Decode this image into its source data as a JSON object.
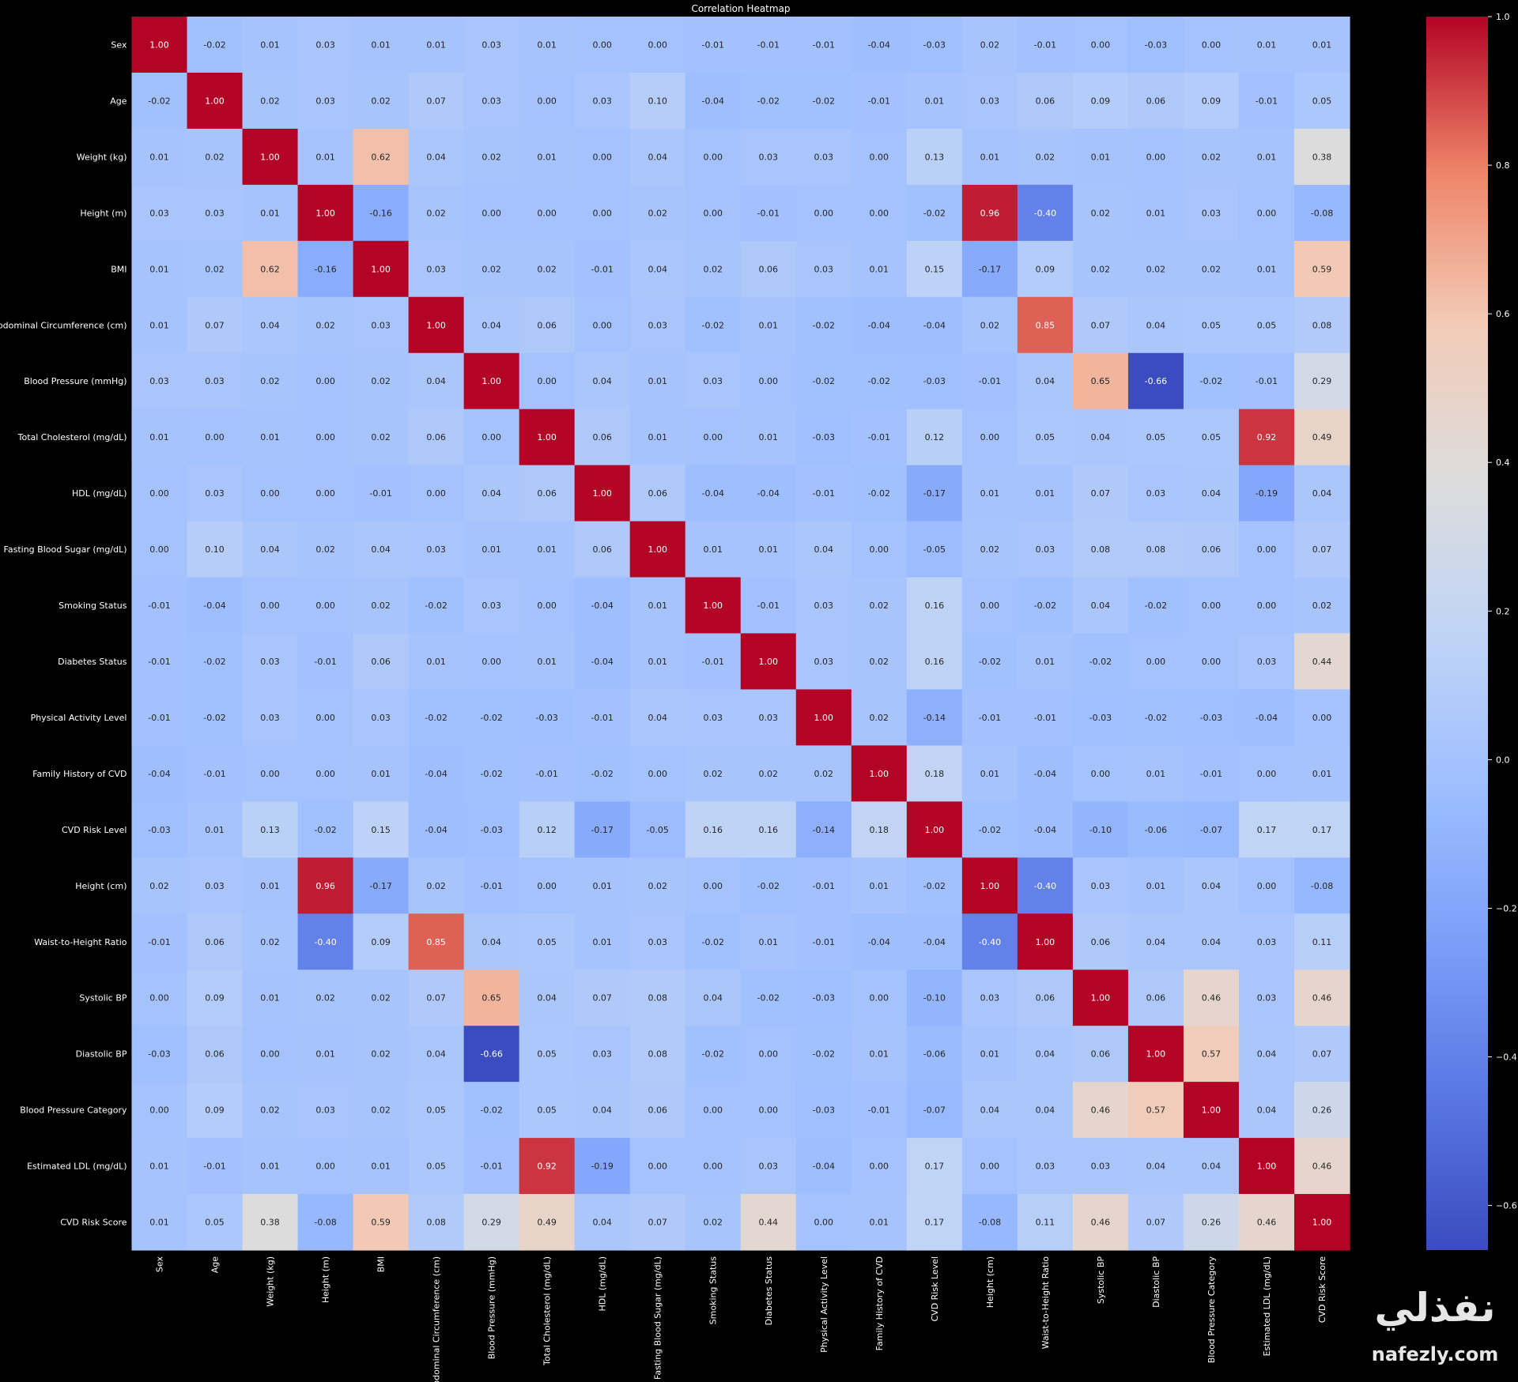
{
  "chart_data": {
    "type": "heatmap",
    "title": "Correlation Heatmap",
    "colormap": "coolwarm",
    "vmin": -0.66,
    "vmax": 1.0,
    "colorbar_ticks": [
      1.0,
      0.8,
      0.6,
      0.4,
      0.2,
      0.0,
      -0.2,
      -0.4,
      -0.6
    ],
    "colorbar_tick_labels": [
      "1.0",
      "0.8",
      "0.6",
      "0.4",
      "0.2",
      "0.0",
      "−0.2",
      "−0.4",
      "−0.6"
    ],
    "labels": [
      "Sex",
      "Age",
      "Weight (kg)",
      "Height (m)",
      "BMI",
      "Abdominal Circumference (cm)",
      "Blood Pressure (mmHg)",
      "Total Cholesterol (mg/dL)",
      "HDL (mg/dL)",
      "Fasting Blood Sugar (mg/dL)",
      "Smoking Status",
      "Diabetes Status",
      "Physical Activity Level",
      "Family History of CVD",
      "CVD Risk Level",
      "Height (cm)",
      "Waist-to-Height Ratio",
      "Systolic BP",
      "Diastolic BP",
      "Blood Pressure Category",
      "Estimated LDL (mg/dL)",
      "CVD Risk Score"
    ],
    "matrix": [
      [
        1.0,
        -0.02,
        0.01,
        0.03,
        0.01,
        0.01,
        0.03,
        0.01,
        -0.0,
        0.0,
        -0.01,
        -0.01,
        -0.01,
        -0.04,
        -0.03,
        0.02,
        -0.01,
        0.0,
        -0.03,
        -0.0,
        0.01,
        0.01
      ],
      [
        -0.02,
        1.0,
        0.02,
        0.03,
        0.02,
        0.07,
        0.03,
        0.0,
        0.03,
        0.1,
        -0.04,
        -0.02,
        -0.02,
        -0.01,
        0.01,
        0.03,
        0.06,
        0.09,
        0.06,
        0.09,
        -0.01,
        0.05
      ],
      [
        0.01,
        0.02,
        1.0,
        0.01,
        0.62,
        0.04,
        0.02,
        0.01,
        -0.0,
        0.04,
        -0.0,
        0.03,
        0.03,
        0.0,
        0.13,
        0.01,
        0.02,
        0.01,
        0.0,
        0.02,
        0.01,
        0.38
      ],
      [
        0.03,
        0.03,
        0.01,
        1.0,
        -0.16,
        0.02,
        -0.0,
        0.0,
        -0.0,
        0.02,
        -0.0,
        -0.01,
        0.0,
        -0.0,
        -0.02,
        0.96,
        -0.4,
        0.02,
        0.01,
        0.03,
        0.0,
        -0.08
      ],
      [
        0.01,
        0.02,
        0.62,
        -0.16,
        1.0,
        0.03,
        0.02,
        0.02,
        -0.01,
        0.04,
        0.02,
        0.06,
        0.03,
        0.01,
        0.15,
        -0.17,
        0.09,
        0.02,
        0.02,
        0.02,
        0.01,
        0.59
      ],
      [
        0.01,
        0.07,
        0.04,
        0.02,
        0.03,
        1.0,
        0.04,
        0.06,
        -0.0,
        0.03,
        -0.02,
        0.01,
        -0.02,
        -0.04,
        -0.04,
        0.02,
        0.85,
        0.07,
        0.04,
        0.05,
        0.05,
        0.08
      ],
      [
        0.03,
        0.03,
        0.02,
        -0.0,
        0.02,
        0.04,
        1.0,
        -0.0,
        0.04,
        0.01,
        0.03,
        -0.0,
        -0.02,
        -0.02,
        -0.03,
        -0.01,
        0.04,
        0.65,
        -0.66,
        -0.02,
        -0.01,
        0.29
      ],
      [
        0.01,
        0.0,
        0.01,
        0.0,
        0.02,
        0.06,
        -0.0,
        1.0,
        0.06,
        0.01,
        -0.0,
        0.01,
        -0.03,
        -0.01,
        0.12,
        0.0,
        0.05,
        0.04,
        0.05,
        0.05,
        0.92,
        0.49
      ],
      [
        -0.0,
        0.03,
        -0.0,
        -0.0,
        -0.01,
        -0.0,
        0.04,
        0.06,
        1.0,
        0.06,
        -0.04,
        -0.04,
        -0.01,
        -0.02,
        -0.17,
        0.01,
        0.01,
        0.07,
        0.03,
        0.04,
        -0.19,
        0.04
      ],
      [
        0.0,
        0.1,
        0.04,
        0.02,
        0.04,
        0.03,
        0.01,
        0.01,
        0.06,
        1.0,
        0.01,
        0.01,
        0.04,
        0.0,
        -0.05,
        0.02,
        0.03,
        0.08,
        0.08,
        0.06,
        0.0,
        0.07
      ],
      [
        -0.01,
        -0.04,
        -0.0,
        -0.0,
        0.02,
        -0.02,
        0.03,
        -0.0,
        -0.04,
        0.01,
        1.0,
        -0.01,
        0.03,
        0.02,
        0.16,
        0.0,
        -0.02,
        0.04,
        -0.02,
        0.0,
        0.0,
        0.02
      ],
      [
        -0.01,
        -0.02,
        0.03,
        -0.01,
        0.06,
        0.01,
        -0.0,
        0.01,
        -0.04,
        0.01,
        -0.01,
        1.0,
        0.03,
        0.02,
        0.16,
        -0.02,
        0.01,
        -0.02,
        0.0,
        -0.0,
        0.03,
        0.44
      ],
      [
        -0.01,
        -0.02,
        0.03,
        0.0,
        0.03,
        -0.02,
        -0.02,
        -0.03,
        -0.01,
        0.04,
        0.03,
        0.03,
        1.0,
        0.02,
        -0.14,
        -0.01,
        -0.01,
        -0.03,
        -0.02,
        -0.03,
        -0.04,
        -0.0
      ],
      [
        -0.04,
        -0.01,
        0.0,
        -0.0,
        0.01,
        -0.04,
        -0.02,
        -0.01,
        -0.02,
        0.0,
        0.02,
        0.02,
        0.02,
        1.0,
        0.18,
        0.01,
        -0.04,
        0.0,
        0.01,
        -0.01,
        -0.0,
        0.01
      ],
      [
        -0.03,
        0.01,
        0.13,
        -0.02,
        0.15,
        -0.04,
        -0.03,
        0.12,
        -0.17,
        -0.05,
        0.16,
        0.16,
        -0.14,
        0.18,
        1.0,
        -0.02,
        -0.04,
        -0.1,
        -0.06,
        -0.07,
        0.17,
        0.17
      ],
      [
        0.02,
        0.03,
        0.01,
        0.96,
        -0.17,
        0.02,
        -0.01,
        0.0,
        0.01,
        0.02,
        0.0,
        -0.02,
        -0.01,
        0.01,
        -0.02,
        1.0,
        -0.4,
        0.03,
        0.01,
        0.04,
        0.0,
        -0.08
      ],
      [
        -0.01,
        0.06,
        0.02,
        -0.4,
        0.09,
        0.85,
        0.04,
        0.05,
        0.01,
        0.03,
        -0.02,
        0.01,
        -0.01,
        -0.04,
        -0.04,
        -0.4,
        1.0,
        0.06,
        0.04,
        0.04,
        0.03,
        0.11
      ],
      [
        0.0,
        0.09,
        0.01,
        0.02,
        0.02,
        0.07,
        0.65,
        0.04,
        0.07,
        0.08,
        0.04,
        -0.02,
        -0.03,
        0.0,
        -0.1,
        0.03,
        0.06,
        1.0,
        0.06,
        0.46,
        0.03,
        0.46
      ],
      [
        -0.03,
        0.06,
        0.0,
        0.01,
        0.02,
        0.04,
        -0.66,
        0.05,
        0.03,
        0.08,
        -0.02,
        0.0,
        -0.02,
        0.01,
        -0.06,
        0.01,
        0.04,
        0.06,
        1.0,
        0.57,
        0.04,
        0.07
      ],
      [
        -0.0,
        0.09,
        0.02,
        0.03,
        0.02,
        0.05,
        -0.02,
        0.05,
        0.04,
        0.06,
        0.0,
        -0.0,
        -0.03,
        -0.01,
        -0.07,
        0.04,
        0.04,
        0.46,
        0.57,
        1.0,
        0.04,
        0.26
      ],
      [
        0.01,
        -0.01,
        0.01,
        0.0,
        0.01,
        0.05,
        -0.01,
        0.92,
        -0.19,
        0.0,
        0.0,
        0.03,
        -0.04,
        -0.0,
        0.17,
        0.0,
        0.03,
        0.03,
        0.04,
        0.04,
        1.0,
        0.46
      ],
      [
        0.01,
        0.05,
        0.38,
        -0.08,
        0.59,
        0.08,
        0.29,
        0.49,
        0.04,
        0.07,
        0.02,
        0.44,
        -0.0,
        0.01,
        0.17,
        -0.08,
        0.11,
        0.46,
        0.07,
        0.26,
        0.46,
        1.0
      ]
    ],
    "annotation_format": "0.00",
    "grid": false,
    "colorbar_placement": "right"
  },
  "watermark": {
    "arabic": "نفذلي",
    "latin": "nafezly.com"
  }
}
